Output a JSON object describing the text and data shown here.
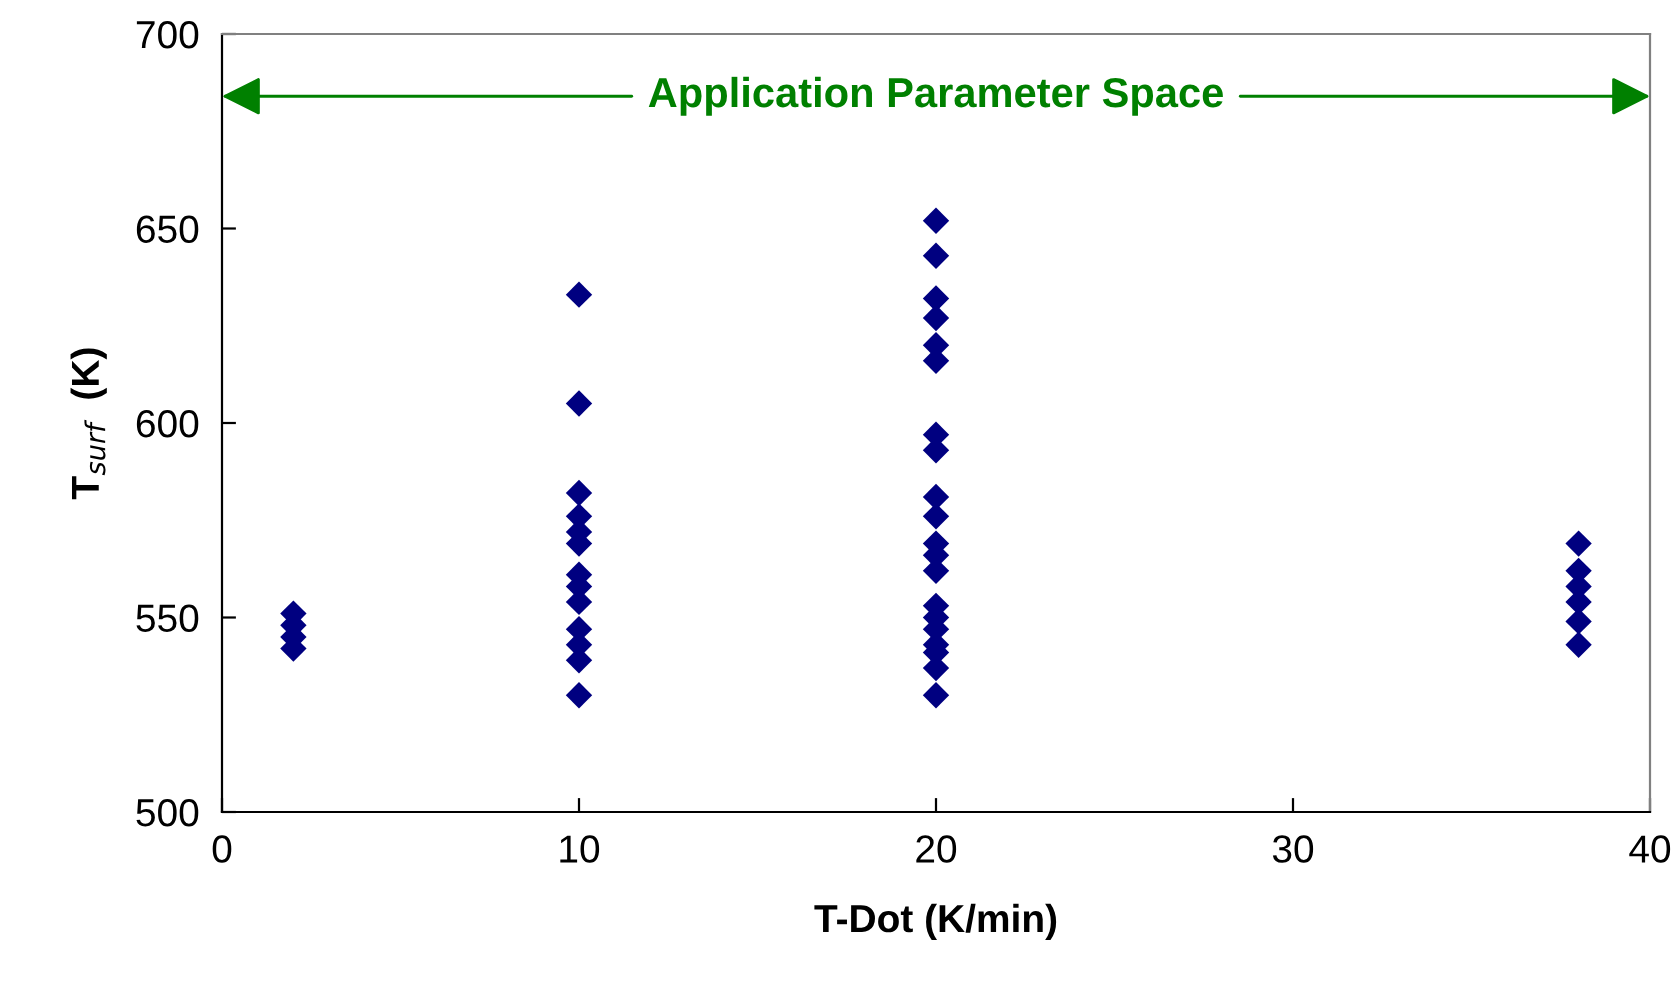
{
  "chart_data": {
    "type": "scatter",
    "xlabel": "T-Dot (K/min)",
    "ylabel": "T$_{surf}$  (K)",
    "annotations": [
      "Application Parameter Space"
    ],
    "x": [
      2,
      2,
      2,
      2,
      10,
      10,
      10,
      10,
      10,
      10,
      10,
      10,
      10,
      10,
      10,
      10,
      10,
      20,
      20,
      20,
      20,
      20,
      20,
      20,
      20,
      20,
      20,
      20,
      20,
      20,
      20,
      20,
      20,
      20,
      20,
      20,
      20,
      38,
      38,
      38,
      38,
      38,
      38
    ],
    "series": [
      {
        "color": "#000080",
        "values": [
          551,
          548,
          545,
          542,
          633,
          605,
          582,
          576,
          572,
          569,
          561,
          558,
          554,
          547,
          543,
          539,
          530,
          652,
          643,
          632,
          627,
          620,
          616,
          597,
          593,
          581,
          576,
          569,
          566,
          562,
          553,
          550,
          547,
          543,
          541,
          537,
          530,
          569,
          562,
          558,
          554,
          549,
          543
        ]
      }
    ],
    "xlim": [
      0,
      40
    ],
    "xticks": [
      0,
      10,
      20,
      30,
      40
    ],
    "ylim": [
      500,
      700
    ],
    "yticks": [
      500,
      550,
      600,
      650,
      700
    ],
    "marker": "diamond",
    "grid": false,
    "legend": false
  }
}
